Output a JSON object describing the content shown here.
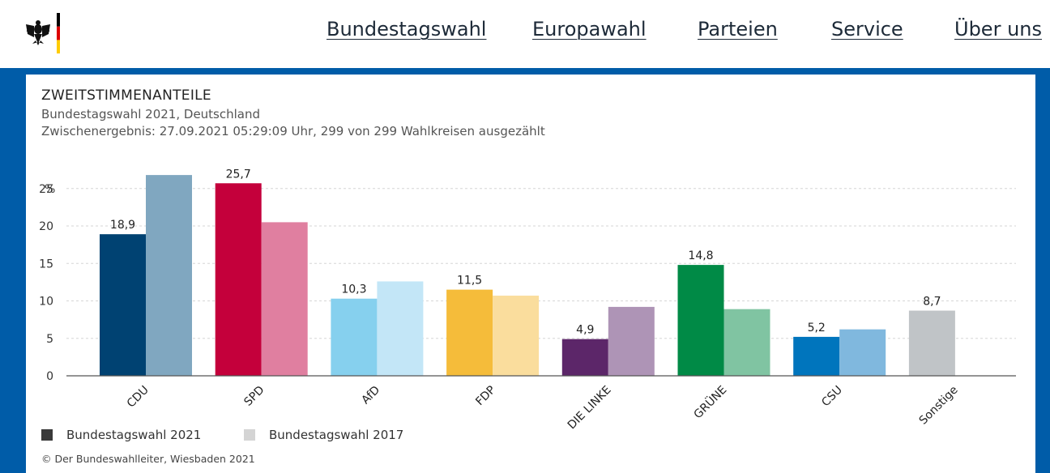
{
  "header": {
    "logo": "bundesadler-logo",
    "nav": [
      {
        "label": "Bundestagswahl",
        "name": "nav-bundestagswahl"
      },
      {
        "label": "Europawahl",
        "name": "nav-europawahl"
      },
      {
        "label": "Parteien",
        "name": "nav-parteien"
      },
      {
        "label": "Service",
        "name": "nav-service"
      },
      {
        "label": "Über uns",
        "name": "nav-ueber-uns"
      }
    ]
  },
  "panel": {
    "title": "ZWEITSTIMMENANTEILE",
    "subtitle": "Bundestagswahl 2021, Deutschland",
    "status": "Zwischenergebnis: 27.09.2021 05:29:09 Uhr, 299 von 299 Wahlkreisen ausgezählt",
    "footer": "© Der Bundeswahlleiter, Wiesbaden 2021"
  },
  "chart_data": {
    "type": "bar",
    "title": "ZWEITSTIMMENANTEILE",
    "ylabel": "%",
    "xlabel": "",
    "ylim": [
      0,
      27
    ],
    "yticks": [
      0,
      5,
      10,
      15,
      20,
      25
    ],
    "grid": true,
    "legend_position": "bottom-left",
    "categories": [
      "CDU",
      "SPD",
      "AfD",
      "FDP",
      "DIE LINKE",
      "GRÜNE",
      "CSU",
      "Sonstige"
    ],
    "series": [
      {
        "name": "Bundestagswahl 2021",
        "legend_color": "#3a3a3a",
        "values": [
          18.9,
          25.7,
          10.3,
          11.5,
          4.9,
          14.8,
          5.2,
          8.7
        ],
        "labels": [
          "18,9",
          "25,7",
          "10,3",
          "11,5",
          "4,9",
          "14,8",
          "5,2",
          "8,7"
        ],
        "colors": [
          "#004272",
          "#c4003b",
          "#86d0ee",
          "#f5bc3a",
          "#5c2669",
          "#008a46",
          "#0075bd",
          "#c0c4c7"
        ]
      },
      {
        "name": "Bundestagswahl 2017",
        "legend_color": "#d4d4d4",
        "values": [
          26.8,
          20.5,
          12.6,
          10.7,
          9.2,
          8.9,
          6.2,
          null
        ],
        "colors": [
          "#80a7c0",
          "#e07fa0",
          "#c3e6f7",
          "#fadd9d",
          "#ae94b6",
          "#80c4a2",
          "#80b8de",
          "#e0e2e3"
        ]
      }
    ]
  }
}
